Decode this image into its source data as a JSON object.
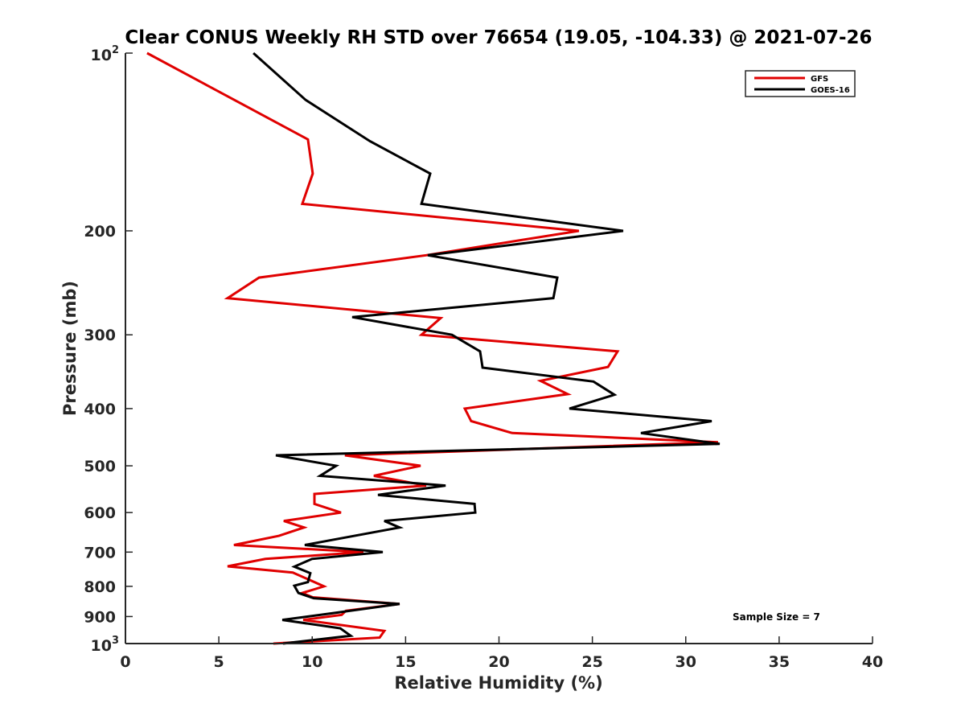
{
  "chart_data": {
    "type": "line",
    "title": "Clear CONUS Weekly RH STD over 76654 (19.05, -104.33) @ 2021-07-26",
    "xlabel": "Relative Humidity (%)",
    "ylabel": "Pressure (mb)",
    "xlim": [
      0,
      40
    ],
    "ylim": [
      100,
      1000
    ],
    "yscale": "log",
    "yreversed": true,
    "grid": false,
    "legend_position": "top-right",
    "annotation": "Sample Size = 7",
    "xticks": [
      0,
      5,
      10,
      15,
      20,
      25,
      30,
      35,
      40
    ],
    "xtick_labels": [
      "0",
      "5",
      "10",
      "15",
      "20",
      "25",
      "30",
      "35",
      "40"
    ],
    "yticks": [
      100,
      200,
      300,
      400,
      500,
      600,
      700,
      800,
      900,
      1000
    ],
    "ytick_labels": [
      {
        "base": "10",
        "exp": "2"
      },
      {
        "text": "200"
      },
      {
        "text": "300"
      },
      {
        "text": "400"
      },
      {
        "text": "500"
      },
      {
        "text": "600"
      },
      {
        "text": "700"
      },
      {
        "text": "800"
      },
      {
        "text": "900"
      },
      {
        "base": "10",
        "exp": "3"
      }
    ],
    "series": [
      {
        "name": "GFS",
        "color": "#e00000",
        "points": [
          [
            1.16,
            100
          ],
          [
            9.77,
            140
          ],
          [
            10.03,
            160
          ],
          [
            9.47,
            180
          ],
          [
            24.28,
            200
          ],
          [
            16.1,
            220
          ],
          [
            7.15,
            240
          ],
          [
            5.47,
            260
          ],
          [
            16.88,
            281
          ],
          [
            15.85,
            300
          ],
          [
            26.35,
            320
          ],
          [
            25.84,
            340
          ],
          [
            22.22,
            359
          ],
          [
            23.68,
            378
          ],
          [
            18.17,
            400
          ],
          [
            18.51,
            420
          ],
          [
            20.71,
            440
          ],
          [
            31.73,
            456
          ],
          [
            11.75,
            480
          ],
          [
            15.8,
            500
          ],
          [
            13.3,
            520
          ],
          [
            16.1,
            540
          ],
          [
            10.12,
            558
          ],
          [
            10.12,
            580
          ],
          [
            11.54,
            600
          ],
          [
            8.48,
            620
          ],
          [
            9.56,
            636
          ],
          [
            8.22,
            657
          ],
          [
            5.81,
            681
          ],
          [
            12.74,
            700
          ],
          [
            7.49,
            719
          ],
          [
            5.47,
            740
          ],
          [
            8.96,
            758
          ],
          [
            10.63,
            800
          ],
          [
            9.47,
            821
          ],
          [
            10.03,
            835
          ],
          [
            14.68,
            857
          ],
          [
            11.8,
            880
          ],
          [
            11.58,
            894
          ],
          [
            9.52,
            912
          ],
          [
            13.86,
            952
          ],
          [
            13.61,
            977
          ],
          [
            7.92,
            1000
          ]
        ]
      },
      {
        "name": "GOES-16",
        "color": "#000000",
        "points": [
          [
            6.85,
            100
          ],
          [
            9.64,
            120
          ],
          [
            13.09,
            141
          ],
          [
            16.32,
            160
          ],
          [
            15.85,
            180
          ],
          [
            26.65,
            200
          ],
          [
            16.19,
            220
          ],
          [
            23.12,
            240
          ],
          [
            22.91,
            260
          ],
          [
            12.14,
            280
          ],
          [
            17.48,
            300
          ],
          [
            18.99,
            320
          ],
          [
            19.12,
            341
          ],
          [
            25.06,
            360
          ],
          [
            26.18,
            379
          ],
          [
            23.77,
            400
          ],
          [
            31.39,
            420
          ],
          [
            27.6,
            440
          ],
          [
            31.82,
            459
          ],
          [
            8.05,
            480
          ],
          [
            11.28,
            500
          ],
          [
            10.42,
            520
          ],
          [
            17.14,
            540
          ],
          [
            13.52,
            560
          ],
          [
            18.69,
            580
          ],
          [
            18.73,
            600
          ],
          [
            13.86,
            620
          ],
          [
            14.68,
            636
          ],
          [
            9.6,
            681
          ],
          [
            13.78,
            700
          ],
          [
            9.99,
            719
          ],
          [
            9.04,
            741
          ],
          [
            9.9,
            760
          ],
          [
            9.77,
            787
          ],
          [
            9.04,
            798
          ],
          [
            9.26,
            821
          ],
          [
            10.08,
            838
          ],
          [
            14.68,
            857
          ],
          [
            11.02,
            889
          ],
          [
            8.4,
            912
          ],
          [
            11.5,
            942
          ],
          [
            12.06,
            970
          ],
          [
            8.44,
            1000
          ]
        ]
      }
    ]
  }
}
